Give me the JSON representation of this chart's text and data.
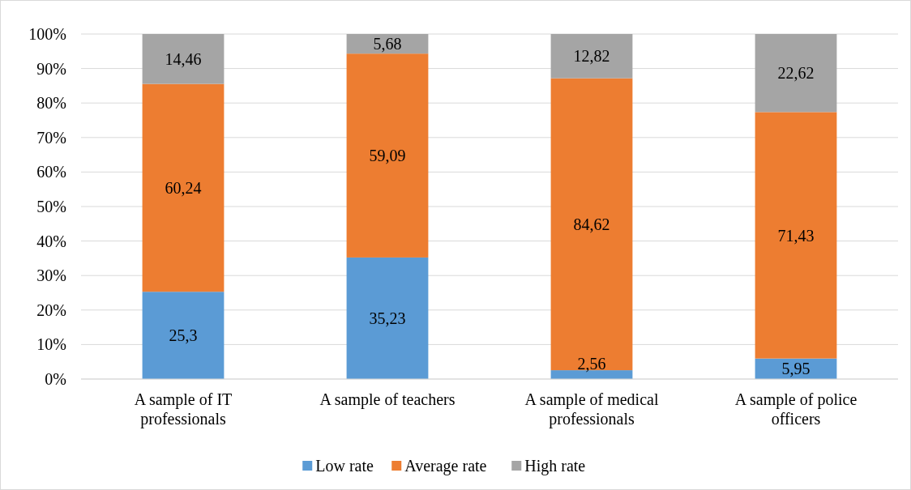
{
  "chart_data": {
    "type": "bar",
    "stacked": true,
    "categories": [
      "A sample of IT professionals",
      "A sample of teachers",
      "A sample of medical professionals",
      "A sample of police officers"
    ],
    "series": [
      {
        "name": "Low rate",
        "color": "#5b9bd5",
        "values": [
          25.3,
          35.23,
          2.56,
          5.95
        ],
        "value_labels": [
          "25,3",
          "35,23",
          "2,56",
          "5,95"
        ]
      },
      {
        "name": "Average rate",
        "color": "#ed7d31",
        "values": [
          60.24,
          59.09,
          84.62,
          71.43
        ],
        "value_labels": [
          "60,24",
          "59,09",
          "84,62",
          "71,43"
        ]
      },
      {
        "name": "High rate",
        "color": "#a5a5a5",
        "values": [
          14.46,
          5.68,
          12.82,
          22.62
        ],
        "value_labels": [
          "14,46",
          "5,68",
          "12,82",
          "22,62"
        ]
      }
    ],
    "ylim": [
      0,
      100
    ],
    "yticks": [
      {
        "value": 0,
        "label": "0%"
      },
      {
        "value": 10,
        "label": "10%"
      },
      {
        "value": 20,
        "label": "20%"
      },
      {
        "value": 30,
        "label": "30%"
      },
      {
        "value": 40,
        "label": "40%"
      },
      {
        "value": 50,
        "label": "50%"
      },
      {
        "value": 60,
        "label": "60%"
      },
      {
        "value": 70,
        "label": "70%"
      },
      {
        "value": 80,
        "label": "80%"
      },
      {
        "value": 90,
        "label": "90%"
      },
      {
        "value": 100,
        "label": "100%"
      }
    ],
    "grid": "y",
    "legend": "bottom"
  }
}
